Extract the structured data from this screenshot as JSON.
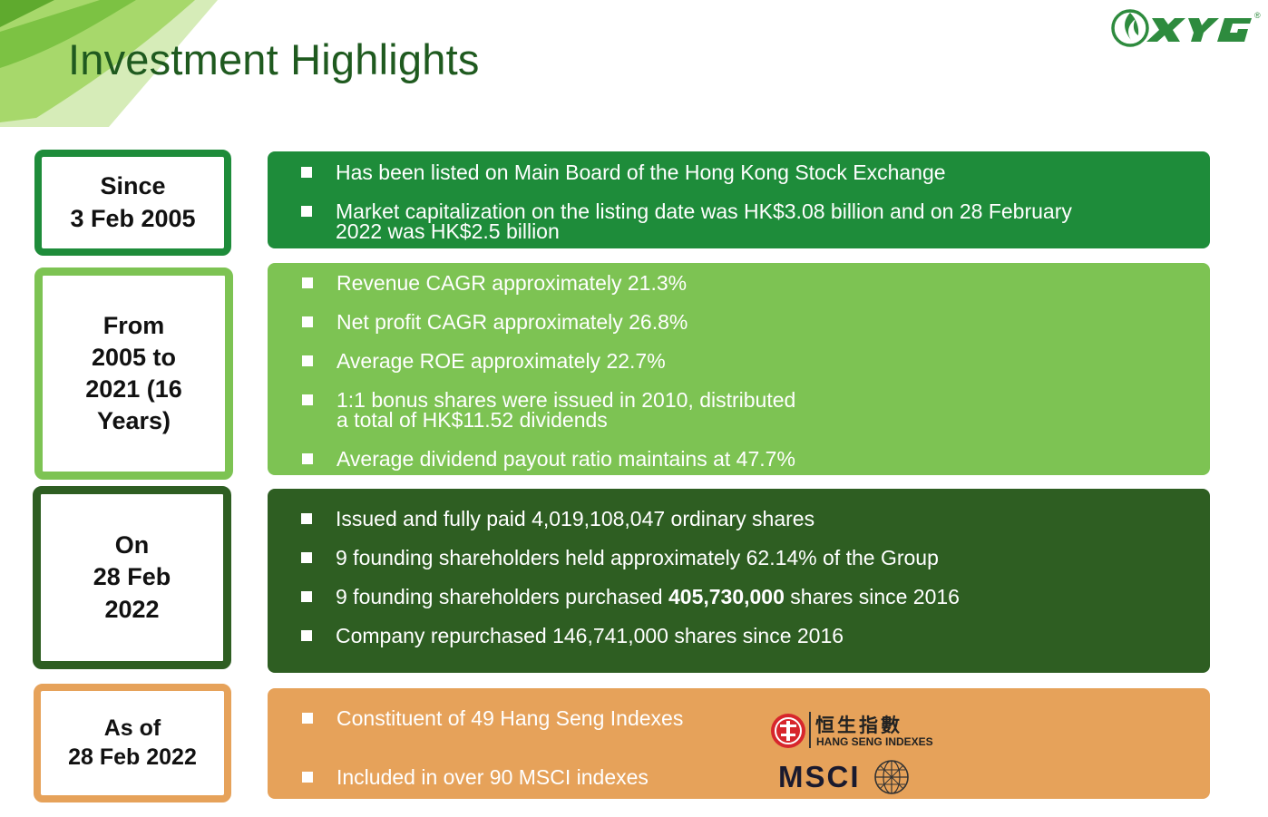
{
  "header": {
    "title": "Investment Highlights",
    "logo_text": "XYG",
    "logo_mark": "®"
  },
  "colors": {
    "dark_green": "#1e8c3a",
    "light_green": "#7dc353",
    "darkest_green": "#2e5e22",
    "orange": "#e6a25a",
    "title_green": "#1f5a1f"
  },
  "sections": [
    {
      "label_lines": [
        "Since",
        "3 Feb 2005"
      ],
      "bullets": [
        {
          "lines": [
            "Has been listed on Main Board of the Hong Kong Stock Exchange"
          ]
        },
        {
          "lines": [
            "Market capitalization on the listing date was HK$3.08 billion and on 28 February",
            "2022 was HK$2.5 billion"
          ]
        }
      ]
    },
    {
      "label_lines": [
        "From",
        "2005 to",
        "2021 (16",
        "Years)"
      ],
      "bullets": [
        {
          "lines": [
            "Revenue CAGR approximately 21.3%"
          ]
        },
        {
          "lines": [
            "Net profit CAGR approximately 26.8%"
          ]
        },
        {
          "lines": [
            "Average ROE approximately 22.7%"
          ]
        },
        {
          "lines": [
            "1:1 bonus shares were issued in 2010, distributed",
            "a total of HK$11.52 dividends"
          ]
        },
        {
          "lines": [
            "Average dividend payout ratio maintains at 47.7%"
          ]
        }
      ]
    },
    {
      "label_lines": [
        "On",
        "28 Feb",
        "2022"
      ],
      "bullets": [
        {
          "lines": [
            "Issued and fully paid 4,019,108,047 ordinary shares"
          ]
        },
        {
          "lines": [
            "9 founding shareholders held approximately 62.14% of the Group"
          ]
        },
        {
          "pre": "9 founding shareholders purchased ",
          "bold": "405,730,000",
          "post": " shares since 2016"
        },
        {
          "lines": [
            "Company repurchased 146,741,000 shares since 2016"
          ]
        }
      ]
    },
    {
      "label_lines": [
        "As of",
        "28 Feb 2022"
      ],
      "bullets": [
        {
          "lines": [
            "Constituent of 49 Hang Seng Indexes"
          ]
        },
        {
          "lines": [
            "Included in over 90 MSCI indexes"
          ]
        }
      ]
    }
  ],
  "index_logos": {
    "hang_seng_cn": "恒生指數",
    "hang_seng_en": "HANG SENG INDEXES",
    "msci": "MSCI"
  }
}
